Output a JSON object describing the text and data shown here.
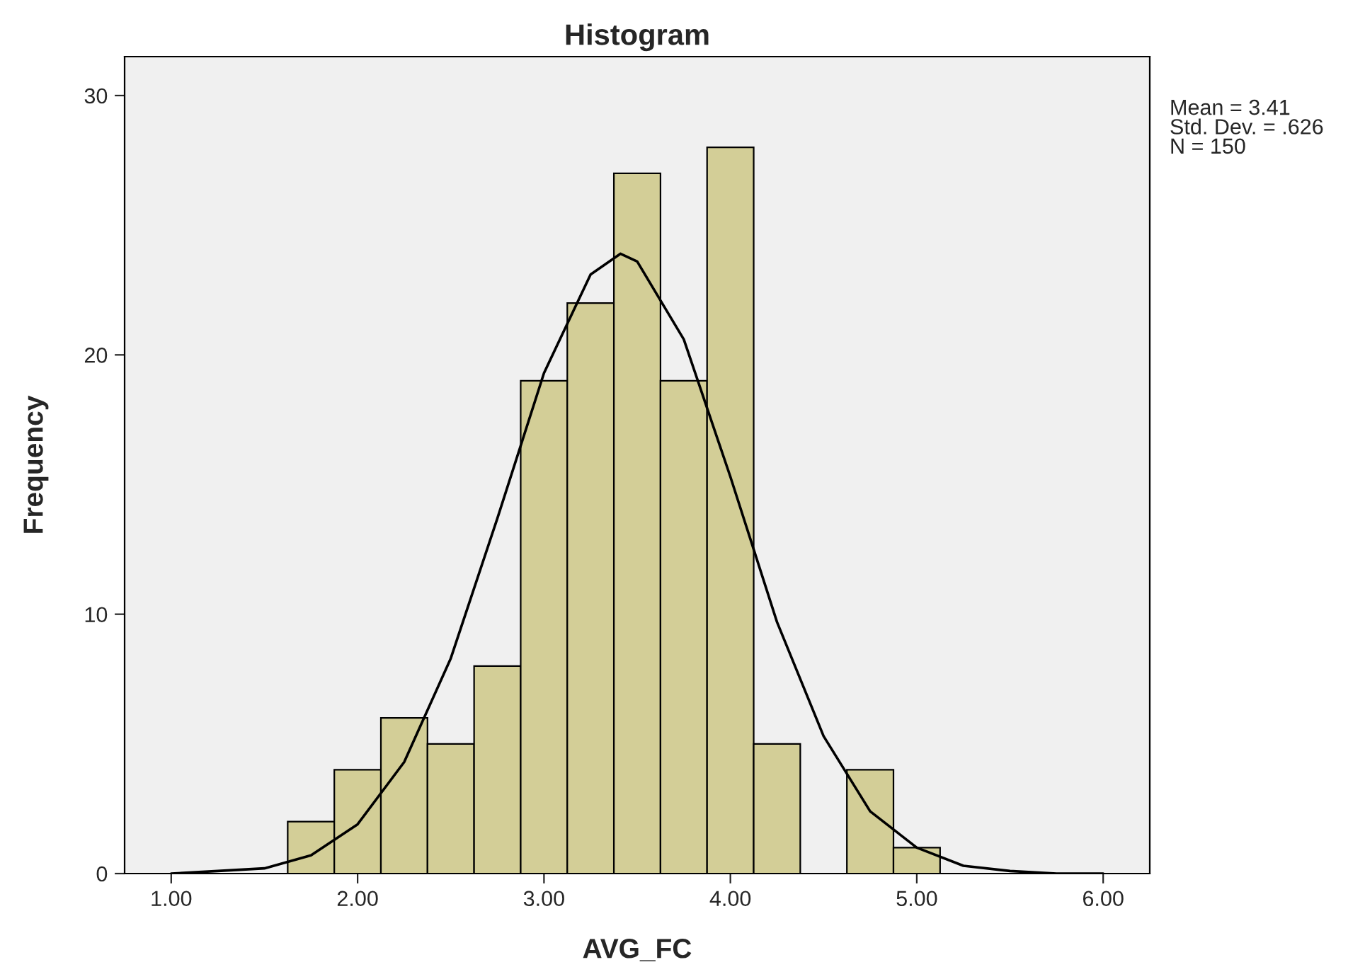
{
  "chart_data": {
    "type": "histogram",
    "title": "Histogram",
    "xlabel": "AVG_FC",
    "ylabel": "Frequency",
    "bins": [
      1.625,
      1.875,
      2.125,
      2.375,
      2.625,
      2.875,
      3.125,
      3.375,
      3.625,
      3.875,
      4.125,
      4.375,
      4.625,
      4.875,
      5.125
    ],
    "values": [
      2,
      4,
      6,
      5,
      8,
      19,
      22,
      27,
      19,
      28,
      5,
      0,
      4,
      1
    ],
    "color": "#d3ce97",
    "series": [
      {
        "type": "line",
        "color": "#000000",
        "x": [
          1.0,
          1.25,
          1.5,
          1.75,
          2.0,
          2.25,
          2.5,
          2.75,
          3.0,
          3.25,
          3.41,
          3.5,
          3.75,
          4.0,
          4.25,
          4.5,
          4.75,
          5.0,
          5.25,
          5.5,
          5.75,
          6.0
        ],
        "values": [
          0.0,
          0.1,
          0.2,
          0.7,
          1.9,
          4.3,
          8.3,
          13.7,
          19.3,
          23.1,
          23.9,
          23.6,
          20.6,
          15.3,
          9.7,
          5.3,
          2.4,
          1.0,
          0.3,
          0.1,
          0.0,
          0.0
        ]
      }
    ],
    "xlim": [
      0.75,
      6.25
    ],
    "xticks": [
      {
        "value": 1,
        "label": "1.00"
      },
      {
        "value": 2,
        "label": "2.00"
      },
      {
        "value": 3,
        "label": "3.00"
      },
      {
        "value": 4,
        "label": "4.00"
      },
      {
        "value": 5,
        "label": "5.00"
      },
      {
        "value": 6,
        "label": "6.00"
      }
    ],
    "ylim": [
      0,
      31.5
    ],
    "yticks": [
      0,
      10,
      20,
      30
    ],
    "grid": false,
    "annotations": [
      "Mean = 3.41\nStd. Dev. = .626\nN = 150"
    ]
  }
}
